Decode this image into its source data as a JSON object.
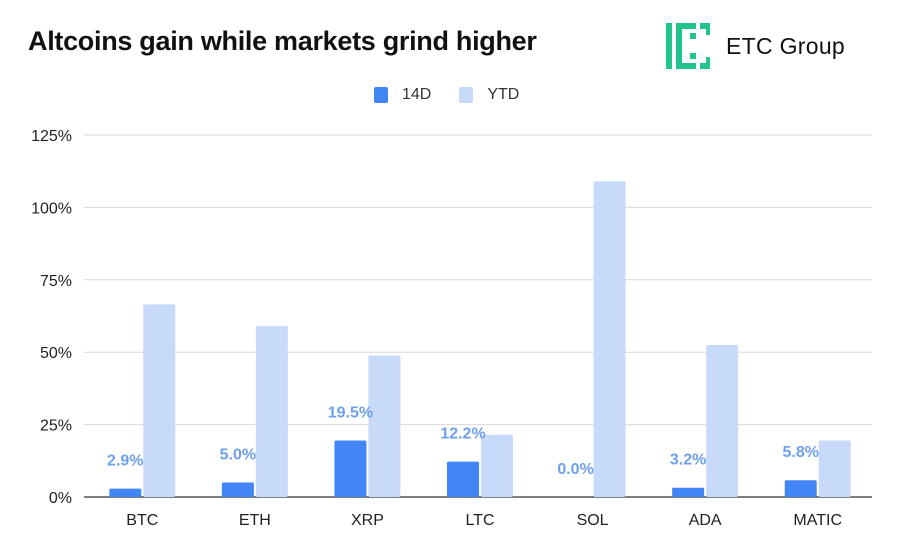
{
  "header": {
    "title": "Altcoins gain while markets grind higher",
    "brand_name": "ETC Group",
    "logo_color": "#21c48a"
  },
  "chart_data": {
    "type": "bar",
    "title": "Altcoins gain while markets grind higher",
    "xlabel": "",
    "ylabel": "",
    "categories": [
      "BTC",
      "ETH",
      "XRP",
      "LTC",
      "SOL",
      "ADA",
      "MATIC"
    ],
    "series": [
      {
        "name": "14D",
        "color": "#4285f4",
        "values": [
          2.9,
          5.0,
          19.5,
          12.2,
          0.0,
          3.2,
          5.8
        ],
        "labels": [
          "2.9%",
          "5.0%",
          "19.5%",
          "12.2%",
          "0.0%",
          "3.2%",
          "5.8%"
        ]
      },
      {
        "name": "YTD",
        "color": "#c8daf9",
        "values": [
          66.5,
          59,
          48.8,
          21.5,
          109,
          52.5,
          19.5
        ]
      }
    ],
    "ylim": [
      0,
      125
    ],
    "yticks": [
      0,
      25,
      50,
      75,
      100,
      125
    ],
    "ytick_labels": [
      "0%",
      "25%",
      "50%",
      "75%",
      "100%",
      "125%"
    ],
    "label_color": "#6fa0ec",
    "grid": true,
    "legend_position": "top-center"
  }
}
